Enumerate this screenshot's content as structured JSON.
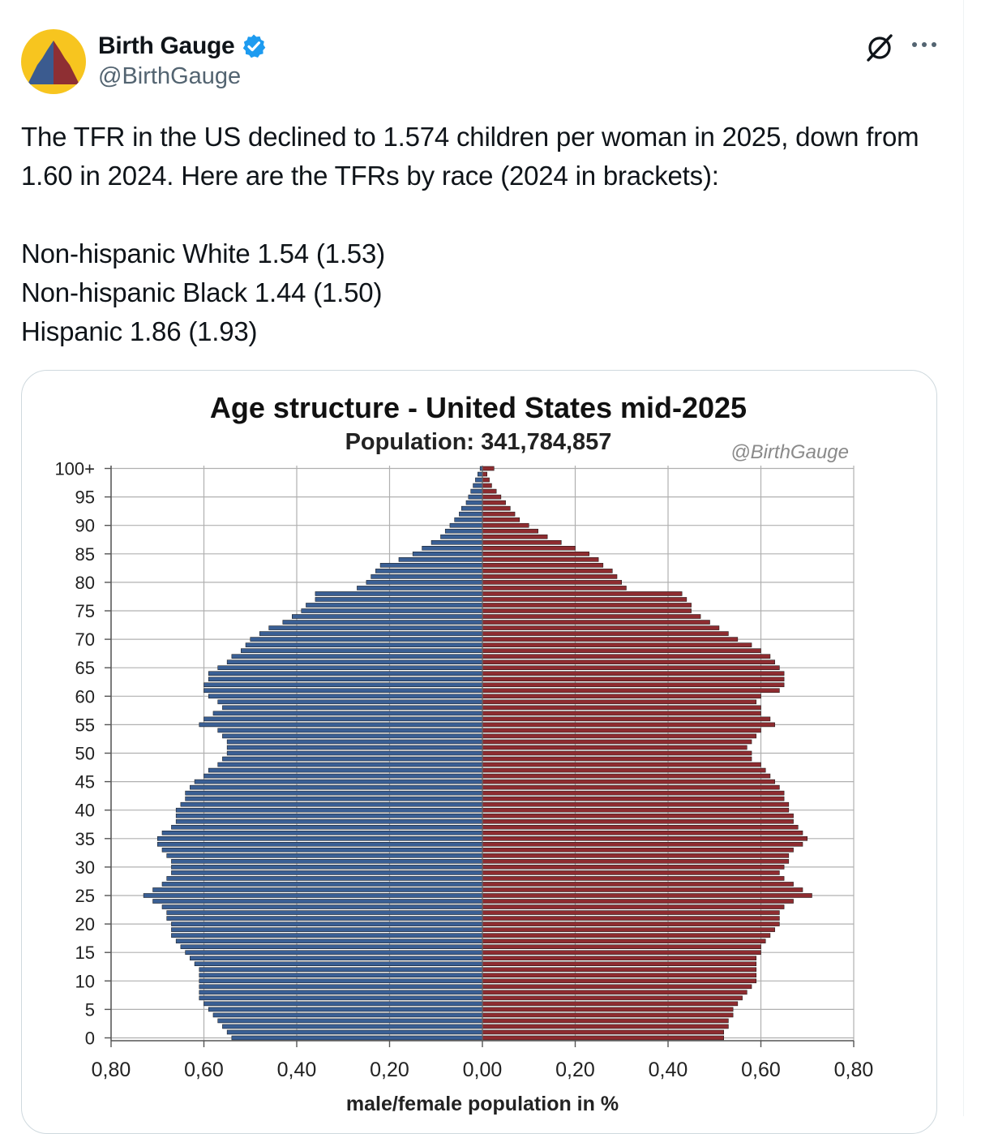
{
  "tweet": {
    "author": {
      "display_name": "Birth Gauge",
      "handle": "@BirthGauge",
      "verified": true,
      "verified_color": "#1d9bf0",
      "avatar_colors": {
        "background": "#f7c51f",
        "left": "#3b5b8f",
        "right": "#8e2f33"
      }
    },
    "icons": {
      "grok": "grok-icon",
      "more": "more-icon"
    },
    "text": "The TFR in the US declined to 1.574 children per woman in 2025, down from 1.60 in 2024. Here are the TFRs by race (2024 in brackets):\n\nNon-hispanic White 1.54 (1.53)\nNon-hispanic Black 1.44 (1.50)\nHispanic 1.86 (1.93)"
  },
  "chart_data": {
    "type": "bar",
    "orientation": "horizontal-population-pyramid",
    "title": "Age structure - United States mid-2025",
    "subtitle": "Population: 341,784,857",
    "watermark": "@BirthGauge",
    "xlabel": "male/female population  in %",
    "x_tick_labels": [
      "0,80",
      "0,60",
      "0,40",
      "0,20",
      "0,00",
      "0,20",
      "0,40",
      "0,60",
      "0,80"
    ],
    "xlim": [
      -0.8,
      0.8
    ],
    "y_tick_labels": [
      "0",
      "5",
      "10",
      "15",
      "20",
      "25",
      "30",
      "35",
      "40",
      "45",
      "50",
      "55",
      "60",
      "65",
      "70",
      "75",
      "80",
      "85",
      "90",
      "95",
      "100+"
    ],
    "grid": true,
    "colors": {
      "male": "#3a5f94",
      "female": "#8e2c30",
      "bar_edge": "#111111",
      "grid": "#b0b0b0"
    },
    "ages": [
      "0",
      "1",
      "2",
      "3",
      "4",
      "5",
      "6",
      "7",
      "8",
      "9",
      "10",
      "11",
      "12",
      "13",
      "14",
      "15",
      "16",
      "17",
      "18",
      "19",
      "20",
      "21",
      "22",
      "23",
      "24",
      "25",
      "26",
      "27",
      "28",
      "29",
      "30",
      "31",
      "32",
      "33",
      "34",
      "35",
      "36",
      "37",
      "38",
      "39",
      "40",
      "41",
      "42",
      "43",
      "44",
      "45",
      "46",
      "47",
      "48",
      "49",
      "50",
      "51",
      "52",
      "53",
      "54",
      "55",
      "56",
      "57",
      "58",
      "59",
      "60",
      "61",
      "62",
      "63",
      "64",
      "65",
      "66",
      "67",
      "68",
      "69",
      "70",
      "71",
      "72",
      "73",
      "74",
      "75",
      "76",
      "77",
      "78",
      "79",
      "80",
      "81",
      "82",
      "83",
      "84",
      "85",
      "86",
      "87",
      "88",
      "89",
      "90",
      "91",
      "92",
      "93",
      "94",
      "95",
      "96",
      "97",
      "98",
      "99",
      "100+"
    ],
    "series": [
      {
        "name": "male",
        "values": [
          0.54,
          0.55,
          0.56,
          0.57,
          0.58,
          0.59,
          0.6,
          0.61,
          0.61,
          0.61,
          0.61,
          0.61,
          0.61,
          0.62,
          0.63,
          0.64,
          0.65,
          0.66,
          0.67,
          0.67,
          0.67,
          0.68,
          0.68,
          0.69,
          0.71,
          0.73,
          0.71,
          0.69,
          0.68,
          0.67,
          0.67,
          0.67,
          0.68,
          0.69,
          0.7,
          0.7,
          0.69,
          0.67,
          0.66,
          0.66,
          0.66,
          0.65,
          0.64,
          0.64,
          0.63,
          0.62,
          0.6,
          0.59,
          0.57,
          0.56,
          0.55,
          0.55,
          0.55,
          0.56,
          0.57,
          0.61,
          0.6,
          0.58,
          0.56,
          0.57,
          0.59,
          0.6,
          0.6,
          0.59,
          0.59,
          0.57,
          0.55,
          0.54,
          0.52,
          0.51,
          0.5,
          0.48,
          0.46,
          0.43,
          0.41,
          0.39,
          0.38,
          0.36,
          0.36,
          0.27,
          0.25,
          0.24,
          0.23,
          0.22,
          0.18,
          0.15,
          0.13,
          0.11,
          0.09,
          0.08,
          0.07,
          0.06,
          0.05,
          0.045,
          0.035,
          0.03,
          0.025,
          0.02,
          0.015,
          0.01,
          0.005
        ]
      },
      {
        "name": "female",
        "values": [
          0.52,
          0.52,
          0.53,
          0.53,
          0.54,
          0.54,
          0.55,
          0.56,
          0.57,
          0.58,
          0.59,
          0.59,
          0.59,
          0.59,
          0.59,
          0.6,
          0.6,
          0.61,
          0.62,
          0.63,
          0.64,
          0.64,
          0.64,
          0.65,
          0.67,
          0.71,
          0.69,
          0.67,
          0.65,
          0.64,
          0.65,
          0.66,
          0.66,
          0.67,
          0.69,
          0.7,
          0.69,
          0.68,
          0.67,
          0.67,
          0.66,
          0.66,
          0.65,
          0.65,
          0.64,
          0.63,
          0.62,
          0.61,
          0.6,
          0.58,
          0.58,
          0.57,
          0.58,
          0.59,
          0.6,
          0.63,
          0.62,
          0.6,
          0.6,
          0.59,
          0.6,
          0.64,
          0.65,
          0.65,
          0.65,
          0.64,
          0.63,
          0.62,
          0.6,
          0.58,
          0.55,
          0.53,
          0.51,
          0.49,
          0.47,
          0.45,
          0.45,
          0.44,
          0.43,
          0.31,
          0.3,
          0.29,
          0.28,
          0.26,
          0.25,
          0.23,
          0.2,
          0.17,
          0.14,
          0.12,
          0.1,
          0.08,
          0.07,
          0.06,
          0.05,
          0.04,
          0.03,
          0.02,
          0.015,
          0.01,
          0.025
        ]
      }
    ]
  }
}
